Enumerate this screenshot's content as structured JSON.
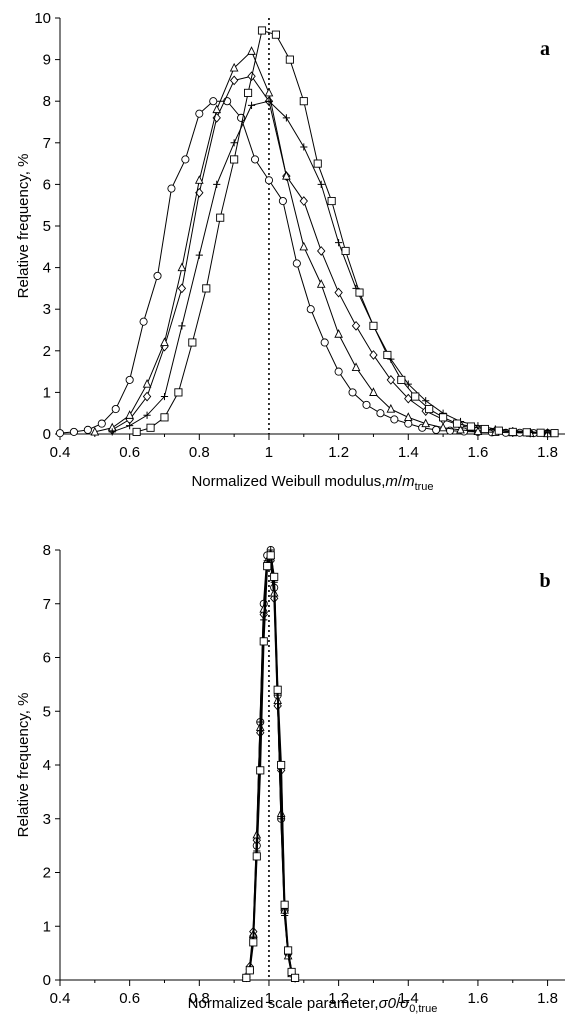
{
  "chart_data": [
    {
      "type": "line",
      "panel_label": "a",
      "xlabel": "Normalized Weibull modulus,",
      "xlabel_math": {
        "var": "m",
        "sep": "/",
        "var2": "m",
        "sub": "true"
      },
      "ylabel": "Relative frequency, %",
      "xlim": [
        0.4,
        1.85
      ],
      "ylim": [
        0,
        10
      ],
      "xticks": [
        "0.4",
        "0.6",
        "0.8",
        "1",
        "1.2",
        "1.4",
        "1.6",
        "1.8"
      ],
      "yticks": [
        "0",
        "1",
        "2",
        "3",
        "4",
        "5",
        "6",
        "7",
        "8",
        "9",
        "10"
      ],
      "reference_line_x": 1.0,
      "grid": false,
      "series": [
        {
          "marker": "circle",
          "x": [
            0.4,
            0.44,
            0.48,
            0.52,
            0.56,
            0.6,
            0.64,
            0.68,
            0.72,
            0.76,
            0.8,
            0.84,
            0.88,
            0.92,
            0.96,
            1.0,
            1.04,
            1.08,
            1.12,
            1.16,
            1.2,
            1.24,
            1.28,
            1.32,
            1.36,
            1.4,
            1.44,
            1.48,
            1.52,
            1.56,
            1.6,
            1.64,
            1.68,
            1.72,
            1.76,
            1.8
          ],
          "y": [
            0.02,
            0.05,
            0.1,
            0.25,
            0.6,
            1.3,
            2.7,
            3.8,
            5.9,
            6.6,
            7.7,
            8.0,
            8.0,
            7.6,
            6.6,
            6.1,
            5.6,
            4.1,
            3.0,
            2.2,
            1.5,
            1.0,
            0.7,
            0.5,
            0.35,
            0.25,
            0.15,
            0.1,
            0.08,
            0.06,
            0.05,
            0.04,
            0.03,
            0.03,
            0.02,
            0.02
          ]
        },
        {
          "marker": "diamond",
          "x": [
            0.55,
            0.6,
            0.65,
            0.7,
            0.75,
            0.8,
            0.85,
            0.9,
            0.95,
            1.0,
            1.05,
            1.1,
            1.15,
            1.2,
            1.25,
            1.3,
            1.35,
            1.4,
            1.45,
            1.5,
            1.55,
            1.6,
            1.65,
            1.7,
            1.75,
            1.8
          ],
          "y": [
            0.1,
            0.35,
            0.9,
            2.1,
            3.5,
            5.8,
            7.6,
            8.5,
            8.6,
            8.0,
            6.2,
            5.6,
            4.4,
            3.4,
            2.6,
            1.9,
            1.3,
            0.85,
            0.55,
            0.35,
            0.2,
            0.12,
            0.08,
            0.05,
            0.03,
            0.02
          ]
        },
        {
          "marker": "triangle",
          "x": [
            0.5,
            0.55,
            0.6,
            0.65,
            0.7,
            0.75,
            0.8,
            0.85,
            0.9,
            0.95,
            1.0,
            1.05,
            1.1,
            1.15,
            1.2,
            1.25,
            1.3,
            1.35,
            1.4,
            1.45,
            1.5,
            1.55,
            1.6,
            1.65,
            1.7,
            1.75,
            1.8
          ],
          "y": [
            0.05,
            0.15,
            0.45,
            1.2,
            2.2,
            4.0,
            6.1,
            7.8,
            8.8,
            9.2,
            8.2,
            6.2,
            4.5,
            3.6,
            2.4,
            1.6,
            1.0,
            0.6,
            0.4,
            0.25,
            0.15,
            0.1,
            0.06,
            0.04,
            0.03,
            0.02,
            0.01
          ]
        },
        {
          "marker": "plus",
          "x": [
            0.55,
            0.6,
            0.65,
            0.7,
            0.75,
            0.8,
            0.85,
            0.9,
            0.95,
            1.0,
            1.05,
            1.1,
            1.15,
            1.2,
            1.25,
            1.3,
            1.35,
            1.4,
            1.45,
            1.5,
            1.55,
            1.6,
            1.65,
            1.7,
            1.75,
            1.8
          ],
          "y": [
            0.05,
            0.2,
            0.45,
            0.9,
            2.6,
            4.3,
            6.0,
            7.0,
            7.9,
            8.0,
            7.6,
            6.9,
            6.0,
            4.6,
            3.5,
            2.6,
            1.8,
            1.2,
            0.8,
            0.5,
            0.3,
            0.2,
            0.12,
            0.08,
            0.05,
            0.03
          ]
        },
        {
          "marker": "square",
          "x": [
            0.62,
            0.66,
            0.7,
            0.74,
            0.78,
            0.82,
            0.86,
            0.9,
            0.94,
            0.98,
            1.02,
            1.06,
            1.1,
            1.14,
            1.18,
            1.22,
            1.26,
            1.3,
            1.34,
            1.38,
            1.42,
            1.46,
            1.5,
            1.54,
            1.58,
            1.62,
            1.66,
            1.7,
            1.74,
            1.78,
            1.82
          ],
          "y": [
            0.05,
            0.15,
            0.4,
            1.0,
            2.2,
            3.5,
            5.2,
            6.6,
            8.2,
            9.7,
            9.6,
            9.0,
            8.0,
            6.5,
            5.6,
            4.4,
            3.4,
            2.6,
            1.9,
            1.3,
            0.9,
            0.6,
            0.4,
            0.25,
            0.18,
            0.12,
            0.08,
            0.05,
            0.04,
            0.03,
            0.02
          ]
        }
      ]
    },
    {
      "type": "line",
      "panel_label": "b",
      "xlabel": "Normalized scale parameter,",
      "xlabel_math": {
        "var": "σ0",
        "sep": "/",
        "var2": "σ",
        "sub": "0,true"
      },
      "ylabel": "Relative frequency, %",
      "xlim": [
        0.4,
        1.85
      ],
      "ylim": [
        0,
        8
      ],
      "xticks": [
        "0.4",
        "0.6",
        "0.8",
        "1",
        "1.2",
        "1.4",
        "1.6",
        "1.8"
      ],
      "yticks": [
        "0",
        "1",
        "2",
        "3",
        "4",
        "5",
        "6",
        "7",
        "8"
      ],
      "reference_line_x": 1.0,
      "grid": false,
      "series": [
        {
          "marker": "circle",
          "x": [
            0.935,
            0.945,
            0.955,
            0.965,
            0.975,
            0.985,
            0.995,
            1.005,
            1.015,
            1.025,
            1.035,
            1.045,
            1.055,
            1.065,
            1.075
          ],
          "y": [
            0.05,
            0.2,
            0.8,
            2.5,
            4.8,
            7.0,
            7.9,
            8.0,
            7.3,
            5.3,
            3.0,
            1.3,
            0.5,
            0.15,
            0.04
          ]
        },
        {
          "marker": "diamond",
          "x": [
            0.935,
            0.945,
            0.955,
            0.965,
            0.975,
            0.985,
            0.995,
            1.005,
            1.015,
            1.025,
            1.035,
            1.045,
            1.055,
            1.065,
            1.075
          ],
          "y": [
            0.05,
            0.25,
            0.9,
            2.6,
            4.6,
            6.8,
            7.7,
            7.8,
            7.1,
            5.1,
            3.9,
            1.3,
            0.5,
            0.12,
            0.04
          ]
        },
        {
          "marker": "triangle",
          "x": [
            0.935,
            0.945,
            0.955,
            0.965,
            0.975,
            0.985,
            0.995,
            1.005,
            1.015,
            1.025,
            1.035,
            1.045,
            1.055,
            1.065,
            1.075
          ],
          "y": [
            0.04,
            0.2,
            0.85,
            2.7,
            4.7,
            6.9,
            7.8,
            7.9,
            7.2,
            5.2,
            3.1,
            1.3,
            0.45,
            0.12,
            0.03
          ]
        },
        {
          "marker": "plus",
          "x": [
            0.935,
            0.945,
            0.955,
            0.965,
            0.975,
            0.985,
            0.995,
            1.005,
            1.015,
            1.025,
            1.035,
            1.045,
            1.055,
            1.065,
            1.075
          ],
          "y": [
            0.05,
            0.2,
            0.8,
            2.4,
            4.8,
            6.7,
            7.8,
            8.0,
            7.4,
            5.3,
            3.0,
            1.2,
            0.5,
            0.15,
            0.04
          ]
        },
        {
          "marker": "square",
          "x": [
            0.935,
            0.945,
            0.955,
            0.965,
            0.975,
            0.985,
            0.995,
            1.005,
            1.015,
            1.025,
            1.035,
            1.045,
            1.055,
            1.065,
            1.075
          ],
          "y": [
            0.04,
            0.18,
            0.7,
            2.3,
            3.9,
            6.3,
            7.7,
            7.9,
            7.5,
            5.4,
            4.0,
            1.4,
            0.55,
            0.15,
            0.04
          ]
        }
      ]
    }
  ]
}
